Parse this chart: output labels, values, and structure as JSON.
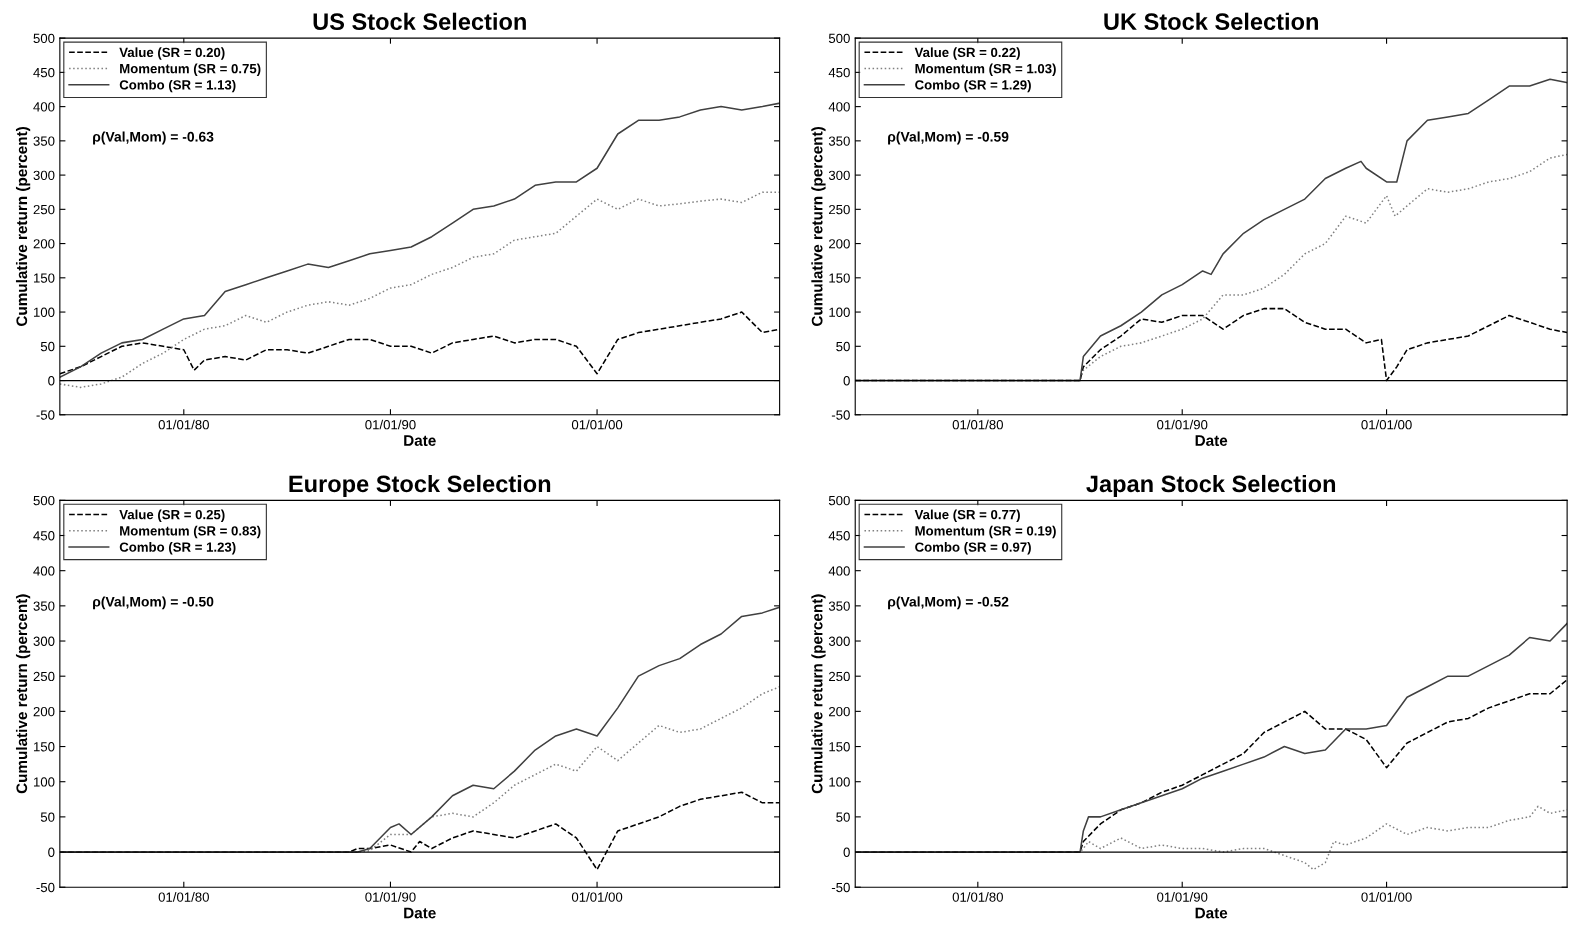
{
  "chart_data": [
    {
      "type": "line",
      "title": "US Stock Selection",
      "xlabel": "Date",
      "ylabel": "Cumulative return (percent)",
      "annotations": [
        "ρ(Val,Mom) = -0.63"
      ],
      "xlim": [
        "1974-01",
        "2008-11"
      ],
      "xticks": [
        {
          "value": "1980-01-01",
          "label": "01/01/80"
        },
        {
          "value": "1990-01-01",
          "label": "01/01/90"
        },
        {
          "value": "2000-01-01",
          "label": "01/01/00"
        }
      ],
      "ylim": [
        -50,
        500
      ],
      "yticks": [
        -50,
        0,
        50,
        100,
        150,
        200,
        250,
        300,
        350,
        400,
        450,
        500
      ],
      "grid": false,
      "legend": "top left",
      "marker": "none",
      "ref_lines": [
        {
          "axis": "y",
          "value": 0,
          "color": "#000000",
          "line_style": "solid"
        }
      ],
      "series": [
        {
          "name": "Value (SR = 0.20)",
          "color": "#000000",
          "line_style": "dashed",
          "x": [
            "1974-01",
            "1975-01",
            "1976-01",
            "1977-01",
            "1978-01",
            "1979-01",
            "1980-01",
            "1980-07",
            "1981-01",
            "1982-01",
            "1983-01",
            "1984-01",
            "1985-01",
            "1986-01",
            "1987-01",
            "1988-01",
            "1989-01",
            "1990-01",
            "1991-01",
            "1992-01",
            "1993-01",
            "1994-01",
            "1995-01",
            "1996-01",
            "1997-01",
            "1998-01",
            "1999-01",
            "2000-01",
            "2001-01",
            "2002-01",
            "2003-01",
            "2004-01",
            "2005-01",
            "2006-01",
            "2007-01",
            "2008-01",
            "2008-11"
          ],
          "values": [
            10,
            20,
            35,
            50,
            55,
            50,
            45,
            15,
            30,
            35,
            30,
            45,
            45,
            40,
            50,
            60,
            60,
            50,
            50,
            40,
            55,
            60,
            65,
            55,
            60,
            60,
            50,
            10,
            60,
            70,
            75,
            80,
            85,
            90,
            100,
            70,
            75
          ]
        },
        {
          "name": "Momentum (SR = 0.75)",
          "color": "#808080",
          "line_style": "dotted",
          "x": [
            "1974-01",
            "1975-01",
            "1976-01",
            "1977-01",
            "1978-01",
            "1979-01",
            "1980-01",
            "1981-01",
            "1982-01",
            "1983-01",
            "1984-01",
            "1985-01",
            "1986-01",
            "1987-01",
            "1988-01",
            "1989-01",
            "1990-01",
            "1991-01",
            "1992-01",
            "1993-01",
            "1994-01",
            "1995-01",
            "1996-01",
            "1997-01",
            "1998-01",
            "1999-01",
            "2000-01",
            "2001-01",
            "2002-01",
            "2003-01",
            "2004-01",
            "2005-01",
            "2006-01",
            "2007-01",
            "2008-01",
            "2008-11"
          ],
          "values": [
            -5,
            -10,
            -5,
            5,
            25,
            40,
            60,
            75,
            80,
            95,
            85,
            100,
            110,
            115,
            110,
            120,
            135,
            140,
            155,
            165,
            180,
            185,
            205,
            210,
            215,
            240,
            265,
            250,
            265,
            255,
            258,
            262,
            265,
            260,
            275,
            275
          ]
        },
        {
          "name": "Combo (SR = 1.13)",
          "color": "#404040",
          "line_style": "solid",
          "x": [
            "1974-01",
            "1975-01",
            "1976-01",
            "1977-01",
            "1978-01",
            "1979-01",
            "1980-01",
            "1981-01",
            "1982-01",
            "1983-01",
            "1984-01",
            "1985-01",
            "1986-01",
            "1987-01",
            "1988-01",
            "1989-01",
            "1990-01",
            "1991-01",
            "1992-01",
            "1993-01",
            "1994-01",
            "1995-01",
            "1996-01",
            "1997-01",
            "1998-01",
            "1999-01",
            "2000-01",
            "2001-01",
            "2002-01",
            "2003-01",
            "2004-01",
            "2005-01",
            "2006-01",
            "2007-01",
            "2008-01",
            "2008-11"
          ],
          "values": [
            5,
            20,
            40,
            55,
            60,
            75,
            90,
            95,
            130,
            140,
            150,
            160,
            170,
            165,
            175,
            185,
            190,
            195,
            210,
            230,
            250,
            255,
            265,
            285,
            290,
            290,
            310,
            360,
            380,
            380,
            385,
            395,
            400,
            395,
            400,
            405
          ]
        }
      ]
    },
    {
      "type": "line",
      "title": "UK Stock Selection",
      "xlabel": "Date",
      "ylabel": "Cumulative return (percent)",
      "annotations": [
        "ρ(Val,Mom) = -0.59"
      ],
      "xlim": [
        "1974-01",
        "2008-11"
      ],
      "xticks": [
        {
          "value": "1980-01-01",
          "label": "01/01/80"
        },
        {
          "value": "1990-01-01",
          "label": "01/01/90"
        },
        {
          "value": "2000-01-01",
          "label": "01/01/00"
        }
      ],
      "ylim": [
        -50,
        500
      ],
      "yticks": [
        -50,
        0,
        50,
        100,
        150,
        200,
        250,
        300,
        350,
        400,
        450,
        500
      ],
      "grid": false,
      "legend": "top left",
      "marker": "none",
      "ref_lines": [
        {
          "axis": "y",
          "value": 0,
          "color": "#000000",
          "line_style": "solid"
        }
      ],
      "series": [
        {
          "name": "Value (SR = 0.22)",
          "color": "#000000",
          "line_style": "dashed",
          "x": [
            "1974-01",
            "1985-01",
            "1985-03",
            "1986-01",
            "1987-01",
            "1988-01",
            "1989-01",
            "1990-01",
            "1991-01",
            "1992-01",
            "1993-01",
            "1994-01",
            "1995-01",
            "1996-01",
            "1997-01",
            "1998-01",
            "1999-01",
            "1999-10",
            "2000-01",
            "2000-07",
            "2001-01",
            "2002-01",
            "2003-01",
            "2004-01",
            "2005-01",
            "2006-01",
            "2007-01",
            "2008-01",
            "2008-11"
          ],
          "values": [
            0,
            0,
            20,
            45,
            65,
            90,
            85,
            95,
            95,
            75,
            95,
            105,
            105,
            85,
            75,
            75,
            55,
            60,
            0,
            20,
            45,
            55,
            60,
            65,
            80,
            95,
            85,
            75,
            70
          ]
        },
        {
          "name": "Momentum (SR = 1.03)",
          "color": "#808080",
          "line_style": "dotted",
          "x": [
            "1974-01",
            "1985-01",
            "1985-03",
            "1986-01",
            "1987-01",
            "1988-01",
            "1989-01",
            "1990-01",
            "1991-01",
            "1992-01",
            "1993-01",
            "1994-01",
            "1995-01",
            "1996-01",
            "1997-01",
            "1998-01",
            "1999-01",
            "2000-01",
            "2000-06",
            "2001-01",
            "2002-01",
            "2003-01",
            "2004-01",
            "2005-01",
            "2006-01",
            "2007-01",
            "2008-01",
            "2008-11"
          ],
          "values": [
            0,
            0,
            15,
            35,
            50,
            55,
            65,
            75,
            90,
            125,
            125,
            135,
            155,
            185,
            200,
            240,
            230,
            270,
            240,
            255,
            280,
            275,
            280,
            290,
            295,
            305,
            325,
            330
          ]
        },
        {
          "name": "Combo (SR = 1.29)",
          "color": "#404040",
          "line_style": "solid",
          "x": [
            "1974-01",
            "1985-01",
            "1985-03",
            "1986-01",
            "1987-01",
            "1988-01",
            "1989-01",
            "1990-01",
            "1991-01",
            "1991-06",
            "1992-01",
            "1993-01",
            "1994-01",
            "1995-01",
            "1996-01",
            "1997-01",
            "1998-01",
            "1998-10",
            "1999-01",
            "2000-01",
            "2000-07",
            "2001-01",
            "2002-01",
            "2003-01",
            "2004-01",
            "2005-01",
            "2006-01",
            "2007-01",
            "2008-01",
            "2008-11"
          ],
          "values": [
            0,
            0,
            35,
            65,
            80,
            100,
            125,
            140,
            160,
            155,
            185,
            215,
            235,
            250,
            265,
            295,
            310,
            320,
            310,
            290,
            290,
            350,
            380,
            385,
            390,
            410,
            430,
            430,
            440,
            435
          ]
        }
      ]
    },
    {
      "type": "line",
      "title": "Europe Stock Selection",
      "xlabel": "Date",
      "ylabel": "Cumulative return (percent)",
      "annotations": [
        "ρ(Val,Mom) = -0.50"
      ],
      "xlim": [
        "1974-01",
        "2008-11"
      ],
      "xticks": [
        {
          "value": "1980-01-01",
          "label": "01/01/80"
        },
        {
          "value": "1990-01-01",
          "label": "01/01/90"
        },
        {
          "value": "2000-01-01",
          "label": "01/01/00"
        }
      ],
      "ylim": [
        -50,
        500
      ],
      "yticks": [
        -50,
        0,
        50,
        100,
        150,
        200,
        250,
        300,
        350,
        400,
        450,
        500
      ],
      "grid": false,
      "legend": "top left",
      "marker": "none",
      "ref_lines": [
        {
          "axis": "y",
          "value": 0,
          "color": "#000000",
          "line_style": "solid"
        }
      ],
      "series": [
        {
          "name": "Value (SR = 0.25)",
          "color": "#000000",
          "line_style": "dashed",
          "x": [
            "1974-01",
            "1988-01",
            "1988-06",
            "1989-01",
            "1990-01",
            "1991-01",
            "1991-06",
            "1992-01",
            "1993-01",
            "1994-01",
            "1995-01",
            "1996-01",
            "1997-01",
            "1998-01",
            "1999-01",
            "2000-01",
            "2001-01",
            "2002-01",
            "2003-01",
            "2004-01",
            "2005-01",
            "2006-01",
            "2007-01",
            "2008-01",
            "2008-11"
          ],
          "values": [
            0,
            0,
            5,
            5,
            10,
            0,
            15,
            5,
            20,
            30,
            25,
            20,
            30,
            40,
            20,
            -25,
            30,
            40,
            50,
            65,
            75,
            80,
            85,
            70,
            70
          ]
        },
        {
          "name": "Momentum (SR = 0.83)",
          "color": "#808080",
          "line_style": "dotted",
          "x": [
            "1974-01",
            "1988-06",
            "1989-01",
            "1990-01",
            "1991-01",
            "1992-01",
            "1993-01",
            "1994-01",
            "1995-01",
            "1996-01",
            "1997-01",
            "1998-01",
            "1999-01",
            "2000-01",
            "2001-01",
            "2002-01",
            "2003-01",
            "2004-01",
            "2005-01",
            "2006-01",
            "2007-01",
            "2008-01",
            "2008-11"
          ],
          "values": [
            0,
            0,
            2,
            25,
            25,
            50,
            55,
            50,
            70,
            95,
            110,
            125,
            115,
            150,
            130,
            155,
            180,
            170,
            175,
            190,
            205,
            225,
            235
          ]
        },
        {
          "name": "Combo (SR = 1.23)",
          "color": "#404040",
          "line_style": "solid",
          "x": [
            "1974-01",
            "1988-06",
            "1989-01",
            "1990-01",
            "1990-06",
            "1991-01",
            "1992-01",
            "1993-01",
            "1994-01",
            "1995-01",
            "1996-01",
            "1997-01",
            "1998-01",
            "1999-01",
            "2000-01",
            "2001-01",
            "2002-01",
            "2003-01",
            "2004-01",
            "2005-01",
            "2006-01",
            "2007-01",
            "2008-01",
            "2008-11"
          ],
          "values": [
            0,
            0,
            5,
            35,
            40,
            25,
            50,
            80,
            95,
            90,
            115,
            145,
            165,
            175,
            165,
            205,
            250,
            265,
            275,
            295,
            310,
            335,
            340,
            348
          ]
        }
      ]
    },
    {
      "type": "line",
      "title": "Japan Stock Selection",
      "xlabel": "Date",
      "ylabel": "Cumulative return (percent)",
      "annotations": [
        "ρ(Val,Mom) = -0.52"
      ],
      "xlim": [
        "1974-01",
        "2008-11"
      ],
      "xticks": [
        {
          "value": "1980-01-01",
          "label": "01/01/80"
        },
        {
          "value": "1990-01-01",
          "label": "01/01/90"
        },
        {
          "value": "2000-01-01",
          "label": "01/01/00"
        }
      ],
      "ylim": [
        -50,
        500
      ],
      "yticks": [
        -50,
        0,
        50,
        100,
        150,
        200,
        250,
        300,
        350,
        400,
        450,
        500
      ],
      "grid": false,
      "legend": "top left",
      "marker": "none",
      "ref_lines": [
        {
          "axis": "y",
          "value": 0,
          "color": "#000000",
          "line_style": "solid"
        }
      ],
      "series": [
        {
          "name": "Value (SR = 0.77)",
          "color": "#000000",
          "line_style": "dashed",
          "x": [
            "1974-01",
            "1985-01",
            "1985-03",
            "1986-01",
            "1987-01",
            "1988-01",
            "1989-01",
            "1990-01",
            "1991-01",
            "1992-01",
            "1993-01",
            "1994-01",
            "1995-01",
            "1996-01",
            "1997-01",
            "1998-01",
            "1999-01",
            "2000-01",
            "2001-01",
            "2002-01",
            "2003-01",
            "2004-01",
            "2005-01",
            "2006-01",
            "2007-01",
            "2008-01",
            "2008-11"
          ],
          "values": [
            0,
            0,
            15,
            40,
            60,
            70,
            85,
            95,
            110,
            125,
            140,
            170,
            185,
            200,
            175,
            175,
            160,
            120,
            155,
            170,
            185,
            190,
            205,
            215,
            225,
            225,
            245
          ]
        },
        {
          "name": "Momentum (SR = 0.19)",
          "color": "#808080",
          "line_style": "dotted",
          "x": [
            "1974-01",
            "1985-01",
            "1985-03",
            "1985-06",
            "1986-01",
            "1987-01",
            "1988-01",
            "1989-01",
            "1990-01",
            "1991-01",
            "1992-01",
            "1993-01",
            "1994-01",
            "1995-01",
            "1996-01",
            "1996-06",
            "1997-01",
            "1997-06",
            "1998-01",
            "1999-01",
            "2000-01",
            "2001-01",
            "2002-01",
            "2003-01",
            "2004-01",
            "2005-01",
            "2006-01",
            "2007-01",
            "2007-06",
            "2008-01",
            "2008-11"
          ],
          "values": [
            0,
            0,
            5,
            15,
            5,
            20,
            5,
            10,
            5,
            5,
            0,
            5,
            5,
            -5,
            -15,
            -25,
            -15,
            15,
            10,
            20,
            40,
            25,
            35,
            30,
            35,
            35,
            45,
            50,
            65,
            55,
            60
          ]
        },
        {
          "name": "Combo (SR = 0.97)",
          "color": "#404040",
          "line_style": "solid",
          "x": [
            "1974-01",
            "1985-01",
            "1985-03",
            "1985-06",
            "1986-01",
            "1987-01",
            "1988-01",
            "1989-01",
            "1990-01",
            "1991-01",
            "1992-01",
            "1993-01",
            "1994-01",
            "1995-01",
            "1996-01",
            "1997-01",
            "1998-01",
            "1999-01",
            "2000-01",
            "2001-01",
            "2002-01",
            "2003-01",
            "2004-01",
            "2005-01",
            "2006-01",
            "2007-01",
            "2008-01",
            "2008-11"
          ],
          "values": [
            0,
            0,
            30,
            50,
            50,
            60,
            70,
            80,
            90,
            105,
            115,
            125,
            135,
            150,
            140,
            145,
            175,
            175,
            180,
            220,
            235,
            250,
            250,
            265,
            280,
            305,
            300,
            325
          ]
        }
      ]
    }
  ]
}
